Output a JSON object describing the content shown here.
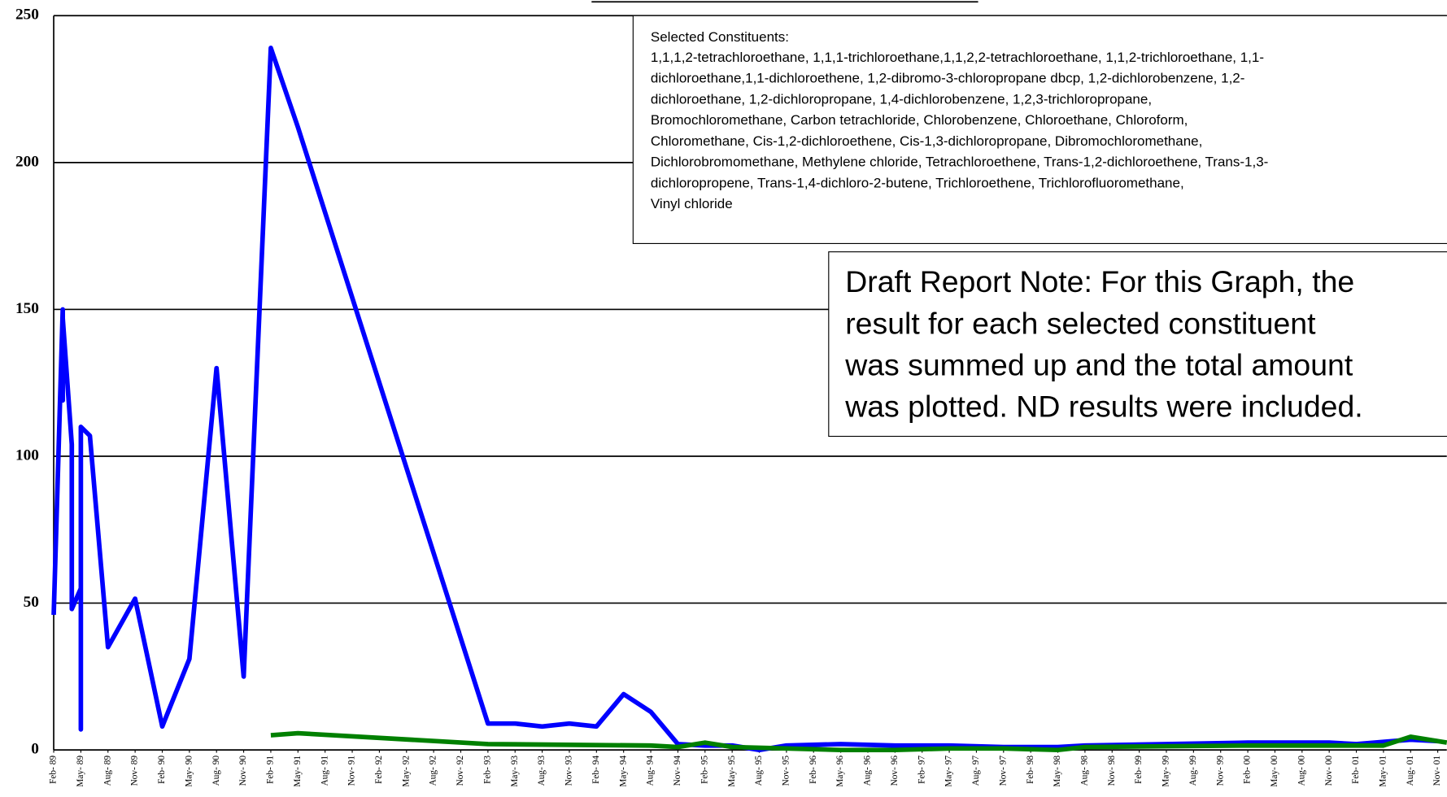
{
  "chart_data": {
    "type": "line",
    "annotations": {
      "constituents_title": "Selected Constituents:",
      "constituents": [
        "1,1,1,2-tetrachloroethane,  1,1,1-trichloroethane,1,1,2,2-tetrachloroethane, 1,1,2-trichloroethane,  1,1-",
        "dichloroethane,1,1-dichloroethene, 1,2-dibromo-3-chloropropane dbcp, 1,2-dichlorobenzene, 1,2-",
        "dichloroethane, 1,2-dichloropropane, 1,4-dichlorobenzene, 1,2,3-trichloropropane,",
        "Bromochloromethane, Carbon tetrachloride, Chlorobenzene, Chloroethane, Chloroform,",
        "Chloromethane, Cis-1,2-dichloroethene, Cis-1,3-dichloropropane, Dibromochloromethane,",
        "Dichlorobromomethane, Methylene chloride, Tetrachloroethene, Trans-1,2-dichloroethene, Trans-1,3-",
        "dichloropropene, Trans-1,4-dichloro-2-butene, Trichloroethene, Trichlorofluoromethane,",
        "Vinyl chloride"
      ],
      "note": [
        "Draft Report Note: For this Graph, the",
        "result for each selected constituent",
        "was summed up and the total amount",
        "was plotted. ND results were included."
      ]
    },
    "xlim": [
      "1989-02",
      "2001-12"
    ],
    "xticks": [
      {
        "value": "1989-02",
        "label": "Feb- 89"
      },
      {
        "value": "1989-05",
        "label": "May- 89"
      },
      {
        "value": "1989-08",
        "label": "Aug- 89"
      },
      {
        "value": "1989-11",
        "label": "Nov- 89"
      },
      {
        "value": "1990-02",
        "label": "Feb- 90"
      },
      {
        "value": "1990-05",
        "label": "May- 90"
      },
      {
        "value": "1990-08",
        "label": "Aug- 90"
      },
      {
        "value": "1990-11",
        "label": "Nov- 90"
      },
      {
        "value": "1991-02",
        "label": "Feb- 91"
      },
      {
        "value": "1991-05",
        "label": "May- 91"
      },
      {
        "value": "1991-08",
        "label": "Aug- 91"
      },
      {
        "value": "1991-11",
        "label": "Nov- 91"
      },
      {
        "value": "1992-02",
        "label": "Feb- 92"
      },
      {
        "value": "1992-05",
        "label": "May- 92"
      },
      {
        "value": "1992-08",
        "label": "Aug- 92"
      },
      {
        "value": "1992-11",
        "label": "Nov- 92"
      },
      {
        "value": "1993-02",
        "label": "Feb- 93"
      },
      {
        "value": "1993-05",
        "label": "May- 93"
      },
      {
        "value": "1993-08",
        "label": "Aug- 93"
      },
      {
        "value": "1993-11",
        "label": "Nov- 93"
      },
      {
        "value": "1994-02",
        "label": "Feb- 94"
      },
      {
        "value": "1994-05",
        "label": "May- 94"
      },
      {
        "value": "1994-08",
        "label": "Aug- 94"
      },
      {
        "value": "1994-11",
        "label": "Nov- 94"
      },
      {
        "value": "1995-02",
        "label": "Feb- 95"
      },
      {
        "value": "1995-05",
        "label": "May- 95"
      },
      {
        "value": "1995-08",
        "label": "Aug- 95"
      },
      {
        "value": "1995-11",
        "label": "Nov- 95"
      },
      {
        "value": "1996-02",
        "label": "Feb- 96"
      },
      {
        "value": "1996-05",
        "label": "May- 96"
      },
      {
        "value": "1996-08",
        "label": "Aug- 96"
      },
      {
        "value": "1996-11",
        "label": "Nov- 96"
      },
      {
        "value": "1997-02",
        "label": "Feb- 97"
      },
      {
        "value": "1997-05",
        "label": "May- 97"
      },
      {
        "value": "1997-08",
        "label": "Aug- 97"
      },
      {
        "value": "1997-11",
        "label": "Nov- 97"
      },
      {
        "value": "1998-02",
        "label": "Feb- 98"
      },
      {
        "value": "1998-05",
        "label": "May- 98"
      },
      {
        "value": "1998-08",
        "label": "Aug- 98"
      },
      {
        "value": "1998-11",
        "label": "Nov- 98"
      },
      {
        "value": "1999-02",
        "label": "Feb- 99"
      },
      {
        "value": "1999-05",
        "label": "May- 99"
      },
      {
        "value": "1999-08",
        "label": "Aug- 99"
      },
      {
        "value": "1999-11",
        "label": "Nov- 99"
      },
      {
        "value": "2000-02",
        "label": "Feb- 00"
      },
      {
        "value": "2000-05",
        "label": "May- 00"
      },
      {
        "value": "2000-08",
        "label": "Aug- 00"
      },
      {
        "value": "2000-11",
        "label": "Nov- 00"
      },
      {
        "value": "2001-02",
        "label": "Feb- 01"
      },
      {
        "value": "2001-05",
        "label": "May- 01"
      },
      {
        "value": "2001-08",
        "label": "Aug- 01"
      },
      {
        "value": "2001-11",
        "label": "Nov- 01"
      }
    ],
    "ylim": [
      0,
      250
    ],
    "yticks": [
      0,
      50,
      100,
      150,
      200,
      250
    ],
    "grid": true,
    "series": [
      {
        "color": "#0000ff",
        "x": [
          "1989-02",
          "1989-03",
          "1989-03",
          "1989-03",
          "1989-04",
          "1989-04",
          "1989-05",
          "1989-05",
          "1989-05",
          "1989-06",
          "1989-08",
          "1989-11",
          "1990-02",
          "1990-05",
          "1990-08",
          "1990-11",
          "1991-02",
          "1991-05",
          "1993-02",
          "1993-05",
          "1993-08",
          "1993-11",
          "1994-02",
          "1994-05",
          "1994-08",
          "1994-11",
          "1995-02",
          "1995-05",
          "1995-08",
          "1995-11",
          "1996-05",
          "1996-11",
          "1997-05",
          "1997-11",
          "1998-05",
          "1998-08",
          "1999-05",
          "2000-02",
          "2000-11",
          "2001-02",
          "2001-08",
          "2001-11"
        ],
        "values": [
          46,
          150,
          119,
          147,
          104,
          48,
          55,
          7,
          110,
          107,
          35,
          51.5,
          8,
          31,
          130,
          25,
          239,
          212,
          9,
          9,
          8,
          9,
          8,
          19,
          13,
          2,
          1.5,
          1.5,
          0,
          1.5,
          2,
          1.5,
          1.5,
          1,
          1,
          1.5,
          2,
          2.5,
          2.5,
          2,
          3.5,
          3
        ]
      },
      {
        "color": "#008000",
        "x": [
          "1991-02",
          "1991-05",
          "1993-02",
          "1994-08",
          "1994-11",
          "1995-02",
          "1995-05",
          "1995-11",
          "1996-05",
          "1996-11",
          "1997-05",
          "1997-11",
          "1998-05",
          "1998-08",
          "2000-02",
          "2001-02",
          "2001-05",
          "2001-08",
          "2001-12"
        ],
        "values": [
          5,
          5.7,
          2,
          1.5,
          1,
          2.5,
          1,
          0.5,
          0,
          0,
          0.5,
          0.5,
          0,
          1,
          1.5,
          1.5,
          1.5,
          4.5,
          2.5
        ]
      }
    ]
  }
}
